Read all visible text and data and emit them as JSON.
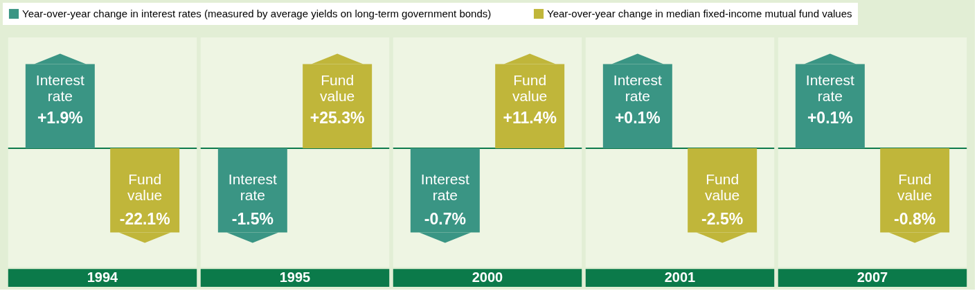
{
  "chart_data": {
    "type": "other",
    "categories": [
      "1994",
      "1995",
      "2000",
      "2001",
      "2007"
    ],
    "series": [
      {
        "name": "Year-over-year change in interest rates (measured by average yields on long-term government bonds)",
        "color": "#3a9584",
        "values": [
          1.9,
          -1.5,
          -0.7,
          0.1,
          0.1
        ],
        "value_labels": [
          "+1.9%",
          "-1.5%",
          "-0.7%",
          "+0.1%",
          "+0.1%"
        ]
      },
      {
        "name": "Year-over-year change in median fixed-income mutual fund values",
        "color": "#c0b63a",
        "values": [
          -22.1,
          25.3,
          11.4,
          -2.5,
          -0.8
        ],
        "value_labels": [
          "-22.1%",
          "+25.3%",
          "+11.4%",
          "-2.5%",
          "-0.8%"
        ]
      }
    ],
    "annotations": [
      "Interest rate",
      "Interest rate",
      "Interest rate",
      "Interest rate",
      "Interest rate",
      "Fund value",
      "Fund value",
      "Fund value",
      "Fund value",
      "Fund value"
    ],
    "legend": "top"
  }
}
